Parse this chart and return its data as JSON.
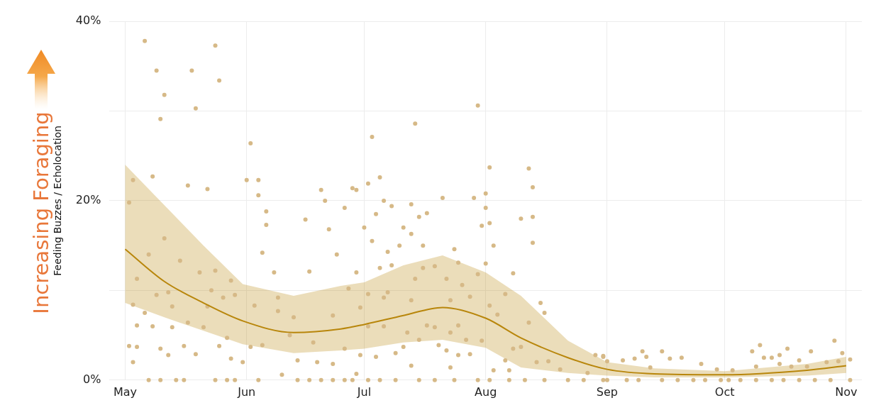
{
  "chart_data": {
    "type": "scatter",
    "ylabel": "Feeding Buzzes / Echolocation",
    "annotations": [
      "Increasing Foraging"
    ],
    "xlim": [
      "--04-27",
      "--11-05"
    ],
    "xticks": [
      {
        "value": "--05-01",
        "label": "May"
      },
      {
        "value": "--06-01",
        "label": "Jun"
      },
      {
        "value": "--07-01",
        "label": "Jul"
      },
      {
        "value": "--08-01",
        "label": "Aug"
      },
      {
        "value": "--09-01",
        "label": "Sep"
      },
      {
        "value": "--10-01",
        "label": "Oct"
      },
      {
        "value": "--11-01",
        "label": "Nov"
      }
    ],
    "ylim": [
      0,
      40
    ],
    "yticks": [
      {
        "value": 0,
        "label": "0%"
      },
      {
        "value": 10,
        "label": null
      },
      {
        "value": 20,
        "label": "20%"
      },
      {
        "value": 30,
        "label": null
      },
      {
        "value": 40,
        "label": "40%"
      }
    ],
    "grid": true,
    "series": [
      {
        "marker": "circle",
        "color": "#d6b987",
        "x": [
          "--05-06",
          "--05-24",
          "--05-09",
          "--05-18",
          "--05-25",
          "--05-11",
          "--05-19",
          "--05-10",
          "--06-02",
          "--05-03",
          "--05-02",
          "--05-08",
          "--05-17",
          "--05-22",
          "--06-01",
          "--06-04",
          "--06-04",
          "--06-06",
          "--06-06",
          "--06-20",
          "--06-21",
          "--06-26",
          "--06-28",
          "--06-16",
          "--06-22",
          "--06-05",
          "--05-11",
          "--05-07",
          "--05-15",
          "--05-20",
          "--05-24",
          "--06-08",
          "--06-17",
          "--06-24",
          "--05-04",
          "--05-23",
          "--05-28",
          "--05-12",
          "--05-09",
          "--06-03",
          "--06-09",
          "--06-27",
          "--05-03",
          "--05-06",
          "--05-13",
          "--05-26",
          "--05-29",
          "--06-09",
          "--06-13",
          "--06-23",
          "--05-17",
          "--05-22",
          "--05-04",
          "--05-08",
          "--05-13",
          "--05-21",
          "--05-27",
          "--06-02",
          "--06-05",
          "--06-12",
          "--06-18",
          "--06-26",
          "--05-02",
          "--05-04",
          "--05-10",
          "--05-16",
          "--05-25",
          "--05-03",
          "--05-12",
          "--05-19",
          "--05-28",
          "--05-31",
          "--06-10",
          "--06-14",
          "--06-19",
          "--06-23",
          "--06-29",
          "--05-07",
          "--05-10",
          "--05-14",
          "--05-16",
          "--05-24",
          "--05-27",
          "--05-29",
          "--06-04",
          "--06-14",
          "--06-17",
          "--06-20",
          "--06-23",
          "--06-26",
          "--06-28",
          "--07-30",
          "--07-14",
          "--07-03",
          "--08-02",
          "--08-12",
          "--07-02",
          "--07-05",
          "--08-13",
          "--07-21",
          "--07-29",
          "--08-01",
          "--07-08",
          "--07-06",
          "--07-13",
          "--06-29",
          "--07-17",
          "--07-15",
          "--07-04",
          "--08-10",
          "--08-13",
          "--08-01",
          "--07-31",
          "--08-02",
          "--07-01",
          "--08-13",
          "--07-11",
          "--07-13",
          "--07-03",
          "--07-16",
          "--08-03",
          "--07-07",
          "--07-10",
          "--07-24",
          "--07-25",
          "--08-01",
          "--07-05",
          "--07-08",
          "--07-16",
          "--07-19",
          "--07-30",
          "--08-08",
          "--07-14",
          "--07-22",
          "--07-26",
          "--08-06",
          "--06-29",
          "--07-02",
          "--07-07",
          "--07-13",
          "--07-23",
          "--07-28",
          "--08-02",
          "--08-15",
          "--08-16",
          "--07-06",
          "--06-30",
          "--07-02",
          "--07-06",
          "--07-17",
          "--07-19",
          "--07-25",
          "--08-04",
          "--08-12",
          "--07-12",
          "--07-15",
          "--07-23",
          "--07-27",
          "--07-31",
          "--08-08",
          "--08-10",
          "--07-11",
          "--07-20",
          "--06-30",
          "--07-04",
          "--07-09",
          "--07-13",
          "--07-22",
          "--07-25",
          "--07-28",
          "--07-23",
          "--08-06",
          "--08-03",
          "--08-07",
          "--08-14",
          "--08-17",
          "--08-20",
          "--08-29",
          "--08-31",
          "--09-01",
          "--08-27",
          "--07-02",
          "--07-05",
          "--07-09",
          "--07-15",
          "--07-19",
          "--07-24",
          "--07-30",
          "--08-02",
          "--08-07",
          "--08-11",
          "--08-16",
          "--08-22",
          "--08-26",
          "--09-01",
          "--08-31",
          "--09-05",
          "--09-10",
          "--09-11",
          "--09-15",
          "--09-17",
          "--09-20",
          "--09-25",
          "--09-12",
          "--09-29",
          "--10-03",
          "--10-08",
          "--10-10",
          "--10-11",
          "--10-13",
          "--10-09",
          "--10-15",
          "--10-17",
          "--10-15",
          "--10-18",
          "--10-20",
          "--10-23",
          "--10-22",
          "--10-27",
          "--10-29",
          "--10-31",
          "--11-02",
          "--10-30",
          "--09-08",
          "--08-31",
          "--09-06",
          "--09-09",
          "--09-15",
          "--09-19",
          "--09-23",
          "--09-26",
          "--09-30",
          "--10-02",
          "--10-05",
          "--10-09",
          "--10-13",
          "--10-16",
          "--10-20",
          "--10-24",
          "--10-28",
          "--11-02"
        ],
        "values": [
          37.8,
          37.3,
          34.5,
          34.5,
          33.4,
          31.8,
          30.3,
          29.1,
          26.4,
          22.3,
          19.8,
          22.7,
          21.7,
          21.3,
          22.3,
          22.3,
          20.6,
          18.8,
          17.3,
          21.2,
          20.0,
          19.2,
          21.4,
          17.9,
          16.8,
          14.2,
          15.8,
          14.0,
          13.3,
          12.0,
          12.2,
          12.0,
          12.1,
          14.0,
          11.3,
          10.0,
          11.1,
          9.8,
          9.5,
          8.3,
          9.2,
          10.2,
          8.4,
          7.5,
          8.2,
          9.2,
          9.5,
          7.7,
          7.0,
          7.2,
          6.4,
          8.2,
          6.1,
          6.0,
          5.9,
          5.9,
          4.7,
          3.7,
          3.9,
          5.0,
          4.2,
          3.5,
          3.8,
          3.7,
          3.5,
          3.8,
          3.8,
          2.0,
          2.8,
          2.9,
          2.4,
          2.0,
          0.6,
          2.2,
          2.0,
          1.8,
          0.7,
          0,
          0,
          0,
          0,
          0,
          0,
          0,
          0,
          0,
          0,
          0,
          0,
          0,
          0,
          30.6,
          28.6,
          27.1,
          23.7,
          23.6,
          21.9,
          22.6,
          21.5,
          20.3,
          20.3,
          20.8,
          19.4,
          20.0,
          19.6,
          21.2,
          18.6,
          18.2,
          18.5,
          18.0,
          18.2,
          19.2,
          17.2,
          17.5,
          17.0,
          15.3,
          17.0,
          16.3,
          15.5,
          15.0,
          15.0,
          14.3,
          15.0,
          14.6,
          13.1,
          13.0,
          12.5,
          12.8,
          12.5,
          12.7,
          11.8,
          11.9,
          11.3,
          11.3,
          10.6,
          9.6,
          12.0,
          9.6,
          9.8,
          8.9,
          8.9,
          9.3,
          8.3,
          8.6,
          7.5,
          9.2,
          8.1,
          6.0,
          6.0,
          6.1,
          5.9,
          6.1,
          7.3,
          6.4,
          5.3,
          4.5,
          5.3,
          4.5,
          4.4,
          3.5,
          3.7,
          3.7,
          3.9,
          2.8,
          2.6,
          3.0,
          1.6,
          3.3,
          2.8,
          2.9,
          1.4,
          2.2,
          1.1,
          1.1,
          2.0,
          2.1,
          1.2,
          2.8,
          2.6,
          2.1,
          0.8,
          0,
          0,
          0,
          0,
          0,
          0,
          0,
          0,
          0,
          0,
          0,
          0,
          0,
          0,
          2.7,
          2.2,
          3.2,
          2.6,
          3.2,
          2.4,
          2.5,
          1.8,
          1.4,
          1.2,
          1.1,
          3.2,
          3.9,
          2.5,
          2.5,
          1.5,
          2.8,
          3.5,
          1.8,
          1.5,
          2.2,
          3.2,
          1.5,
          2.0,
          4.4,
          3.0,
          2.3,
          2.1,
          2.4,
          0,
          0,
          0,
          0,
          0,
          0,
          0,
          0,
          0,
          0,
          0,
          0,
          0,
          0,
          0,
          0,
          0
        ]
      },
      {
        "type": "line",
        "marker": "none",
        "color": "#b8860b",
        "x": [
          "--05-01",
          "--05-11",
          "--05-21",
          "--05-31",
          "--06-13",
          "--06-25",
          "--07-01",
          "--07-11",
          "--07-21",
          "--08-01",
          "--08-10",
          "--08-22",
          "--09-01",
          "--09-13",
          "--10-01",
          "--10-22",
          "--11-01"
        ],
        "values": [
          14.6,
          11.0,
          8.6,
          6.6,
          5.3,
          5.7,
          6.2,
          7.2,
          8.1,
          6.9,
          4.7,
          2.5,
          1.2,
          0.7,
          0.6,
          1.1,
          1.6
        ],
        "upper": [
          24.0,
          19.5,
          15.0,
          10.7,
          9.4,
          10.5,
          10.9,
          12.8,
          13.9,
          12.0,
          9.4,
          4.4,
          2.0,
          1.3,
          1.0,
          1.8,
          2.6
        ],
        "lower": [
          8.6,
          7.0,
          5.5,
          4.0,
          3.0,
          3.3,
          3.5,
          4.2,
          4.5,
          3.6,
          1.4,
          0.8,
          0.5,
          0.3,
          0.3,
          0.5,
          0.8
        ]
      }
    ]
  }
}
